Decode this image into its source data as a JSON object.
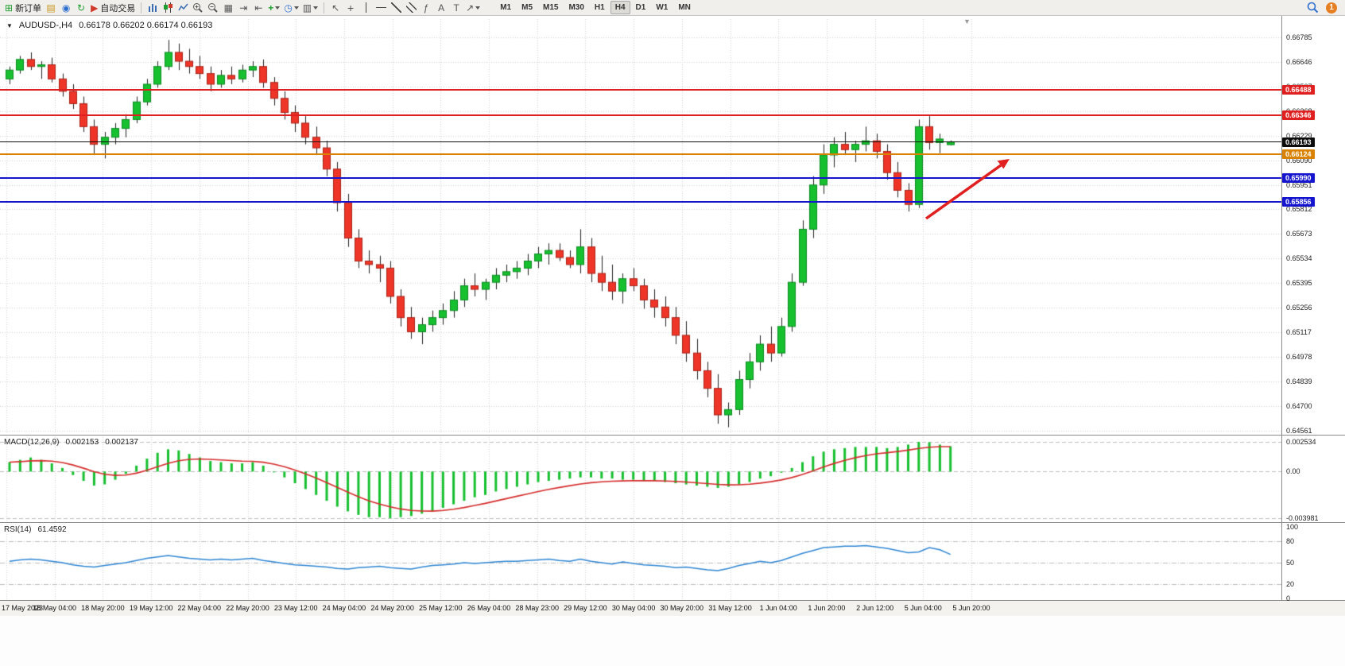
{
  "toolbar": {
    "new_order_label": "新订单",
    "autotrading_label": "自动交易",
    "timeframes": [
      "M1",
      "M5",
      "M15",
      "M30",
      "H1",
      "H4",
      "D1",
      "W1",
      "MN"
    ],
    "active_timeframe": "H4",
    "notification_count": "1"
  },
  "chart": {
    "symbol_period": "AUDUSD-,H4",
    "ohlc": "0.66178 0.66202 0.66174 0.66193",
    "open": "0.66178",
    "high": "0.66202",
    "low": "0.66174",
    "close": "0.66193"
  },
  "icons": {
    "caret_down": "▼",
    "new_order": "⊞",
    "folder": "▤",
    "profile": "◉",
    "refresh": "↻",
    "autotrade": "▶",
    "tile": "▦",
    "autoscroll": "⇥",
    "chart_shift": "⇤",
    "indicators": "+",
    "clock": "◷",
    "template": "▥",
    "cursor": "↖",
    "crosshair": "+",
    "fibonacci": "ƒ",
    "text": "A",
    "text_label": "T",
    "arrows": "↗",
    "shift_marker": "▼"
  },
  "chart_data": {
    "type": "candlestick",
    "symbol": "AUDUSD-",
    "timeframe": "H4",
    "title": "AUDUSD-,H4 0.66178 0.66202 0.66174 0.66193",
    "ylim": [
      0.64561,
      0.66785
    ],
    "price_axis": {
      "labels": [
        "0.66785",
        "0.66646",
        "0.66507",
        "0.66368",
        "0.66229",
        "0.66090",
        "0.65951",
        "0.65812",
        "0.65673",
        "0.65534",
        "0.65395",
        "0.65256",
        "0.65117",
        "0.64978",
        "0.64839",
        "0.64700",
        "0.64561"
      ]
    },
    "levels": [
      {
        "name": "resistance-1",
        "label": "0.66488",
        "price": 0.66488,
        "color": "#e02020"
      },
      {
        "name": "resistance-2",
        "label": "0.66346",
        "price": 0.66346,
        "color": "#e02020"
      },
      {
        "name": "current-price",
        "label": "0.66193",
        "price": 0.66193,
        "color": "#0c0c0c"
      },
      {
        "name": "mid-level",
        "label": "0.66124",
        "price": 0.66124,
        "color": "#d98200"
      },
      {
        "name": "support-1",
        "label": "0.65990",
        "price": 0.6599,
        "color": "#1515d0"
      },
      {
        "name": "support-2",
        "label": "0.65856",
        "price": 0.65856,
        "color": "#1515d0"
      }
    ],
    "time_labels": [
      "17 May 2023",
      "18 May 04:00",
      "18 May 20:00",
      "19 May 12:00",
      "22 May 04:00",
      "22 May 20:00",
      "23 May 12:00",
      "24 May 04:00",
      "24 May 20:00",
      "25 May 12:00",
      "26 May 04:00",
      "28 May 23:00",
      "29 May 12:00",
      "30 May 04:00",
      "30 May 20:00",
      "31 May 12:00",
      "1 Jun 04:00",
      "1 Jun 20:00",
      "2 Jun 12:00",
      "5 Jun 04:00",
      "5 Jun 20:00"
    ],
    "candles": [
      [
        0.6655,
        0.6662,
        0.6652,
        0.666
      ],
      [
        0.666,
        0.6668,
        0.6658,
        0.6666
      ],
      [
        0.6666,
        0.667,
        0.666,
        0.6662
      ],
      [
        0.6662,
        0.6665,
        0.6655,
        0.6663
      ],
      [
        0.6663,
        0.6667,
        0.6653,
        0.6655
      ],
      [
        0.6655,
        0.6658,
        0.6645,
        0.6648
      ],
      [
        0.6648,
        0.6652,
        0.6638,
        0.6641
      ],
      [
        0.6641,
        0.6645,
        0.6625,
        0.6628
      ],
      [
        0.6628,
        0.6632,
        0.6612,
        0.6618
      ],
      [
        0.6618,
        0.6625,
        0.661,
        0.6622
      ],
      [
        0.6622,
        0.663,
        0.6618,
        0.6627
      ],
      [
        0.6627,
        0.6635,
        0.6622,
        0.6632
      ],
      [
        0.6632,
        0.6645,
        0.663,
        0.6642
      ],
      [
        0.6642,
        0.6655,
        0.664,
        0.6652
      ],
      [
        0.6652,
        0.6665,
        0.665,
        0.6662
      ],
      [
        0.6662,
        0.6677,
        0.666,
        0.667
      ],
      [
        0.667,
        0.6675,
        0.666,
        0.6665
      ],
      [
        0.6665,
        0.6672,
        0.6658,
        0.6662
      ],
      [
        0.6662,
        0.6668,
        0.6655,
        0.6658
      ],
      [
        0.6658,
        0.6662,
        0.6648,
        0.6652
      ],
      [
        0.6652,
        0.666,
        0.665,
        0.6657
      ],
      [
        0.6657,
        0.6662,
        0.6652,
        0.6655
      ],
      [
        0.6655,
        0.6663,
        0.6653,
        0.666
      ],
      [
        0.666,
        0.6665,
        0.6656,
        0.6662
      ],
      [
        0.6662,
        0.6666,
        0.665,
        0.6653
      ],
      [
        0.6653,
        0.6656,
        0.664,
        0.6644
      ],
      [
        0.6644,
        0.6648,
        0.6632,
        0.6636
      ],
      [
        0.6636,
        0.664,
        0.6625,
        0.663
      ],
      [
        0.663,
        0.6634,
        0.6618,
        0.6622
      ],
      [
        0.6622,
        0.6628,
        0.6612,
        0.6616
      ],
      [
        0.6616,
        0.662,
        0.66,
        0.6604
      ],
      [
        0.6604,
        0.6608,
        0.658,
        0.6585
      ],
      [
        0.6585,
        0.659,
        0.656,
        0.6565
      ],
      [
        0.6565,
        0.657,
        0.6548,
        0.6552
      ],
      [
        0.6552,
        0.6558,
        0.6545,
        0.655
      ],
      [
        0.655,
        0.6555,
        0.654,
        0.6548
      ],
      [
        0.6548,
        0.6552,
        0.6528,
        0.6532
      ],
      [
        0.6532,
        0.6536,
        0.6515,
        0.652
      ],
      [
        0.652,
        0.6526,
        0.6508,
        0.6512
      ],
      [
        0.6512,
        0.652,
        0.6505,
        0.6516
      ],
      [
        0.6516,
        0.6524,
        0.6512,
        0.652
      ],
      [
        0.652,
        0.6528,
        0.6516,
        0.6524
      ],
      [
        0.6524,
        0.6535,
        0.652,
        0.653
      ],
      [
        0.653,
        0.6542,
        0.6526,
        0.6538
      ],
      [
        0.6538,
        0.6545,
        0.6532,
        0.6536
      ],
      [
        0.6536,
        0.6542,
        0.653,
        0.654
      ],
      [
        0.654,
        0.6548,
        0.6536,
        0.6544
      ],
      [
        0.6544,
        0.655,
        0.654,
        0.6546
      ],
      [
        0.6546,
        0.6552,
        0.6542,
        0.6548
      ],
      [
        0.6548,
        0.6556,
        0.6544,
        0.6552
      ],
      [
        0.6552,
        0.656,
        0.6548,
        0.6556
      ],
      [
        0.6556,
        0.6562,
        0.655,
        0.6558
      ],
      [
        0.6558,
        0.6562,
        0.6552,
        0.6554
      ],
      [
        0.6554,
        0.6558,
        0.6548,
        0.655
      ],
      [
        0.655,
        0.657,
        0.6545,
        0.656
      ],
      [
        0.656,
        0.6565,
        0.654,
        0.6545
      ],
      [
        0.6545,
        0.6555,
        0.6535,
        0.654
      ],
      [
        0.654,
        0.655,
        0.653,
        0.6535
      ],
      [
        0.6535,
        0.6545,
        0.6528,
        0.6542
      ],
      [
        0.6542,
        0.6548,
        0.6535,
        0.6538
      ],
      [
        0.6538,
        0.6542,
        0.6525,
        0.653
      ],
      [
        0.653,
        0.6536,
        0.652,
        0.6526
      ],
      [
        0.6526,
        0.6532,
        0.6515,
        0.652
      ],
      [
        0.652,
        0.6526,
        0.6505,
        0.651
      ],
      [
        0.651,
        0.6518,
        0.6495,
        0.65
      ],
      [
        0.65,
        0.6508,
        0.6485,
        0.649
      ],
      [
        0.649,
        0.6495,
        0.6475,
        0.648
      ],
      [
        0.648,
        0.6488,
        0.646,
        0.6465
      ],
      [
        0.6465,
        0.6472,
        0.6458,
        0.6468
      ],
      [
        0.6468,
        0.649,
        0.6465,
        0.6485
      ],
      [
        0.6485,
        0.65,
        0.648,
        0.6495
      ],
      [
        0.6495,
        0.651,
        0.649,
        0.6505
      ],
      [
        0.6505,
        0.6515,
        0.6495,
        0.65
      ],
      [
        0.65,
        0.652,
        0.6498,
        0.6515
      ],
      [
        0.6515,
        0.6545,
        0.6512,
        0.654
      ],
      [
        0.654,
        0.6575,
        0.6538,
        0.657
      ],
      [
        0.657,
        0.66,
        0.6565,
        0.6595
      ],
      [
        0.6595,
        0.6618,
        0.659,
        0.6612
      ],
      [
        0.6612,
        0.6622,
        0.6605,
        0.6618
      ],
      [
        0.6618,
        0.6625,
        0.6612,
        0.6615
      ],
      [
        0.6615,
        0.662,
        0.6608,
        0.6618
      ],
      [
        0.6618,
        0.6628,
        0.6614,
        0.662
      ],
      [
        0.662,
        0.6624,
        0.661,
        0.6614
      ],
      [
        0.6614,
        0.6618,
        0.6598,
        0.6602
      ],
      [
        0.6602,
        0.6608,
        0.6588,
        0.6592
      ],
      [
        0.6592,
        0.6596,
        0.658,
        0.6584
      ],
      [
        0.6584,
        0.6632,
        0.6582,
        0.6628
      ],
      [
        0.6628,
        0.6634,
        0.6615,
        0.6619
      ],
      [
        0.6619,
        0.6624,
        0.6613,
        0.6621
      ],
      [
        0.66178,
        0.66202,
        0.66174,
        0.66193
      ]
    ],
    "macd": {
      "name": "MACD(12,26,9)",
      "main_value": "0.002153",
      "signal_value": "0.002137",
      "scale_labels": [
        "0.002534",
        "0.00",
        "-0.003981"
      ],
      "values": [
        0.0008,
        0.001,
        0.0012,
        0.001,
        0.0007,
        0.0003,
        -0.0003,
        -0.0008,
        -0.0012,
        -0.0011,
        -0.0007,
        -0.0002,
        0.0005,
        0.0011,
        0.0016,
        0.0019,
        0.0018,
        0.0015,
        0.0012,
        0.0009,
        0.0008,
        0.0007,
        0.0007,
        0.0008,
        0.0005,
        0.0,
        -0.0005,
        -0.001,
        -0.0015,
        -0.002,
        -0.0025,
        -0.003,
        -0.0034,
        -0.0037,
        -0.0039,
        -0.0039,
        -0.003981,
        -0.0039,
        -0.0038,
        -0.0036,
        -0.0034,
        -0.0031,
        -0.0028,
        -0.0025,
        -0.0022,
        -0.002,
        -0.0017,
        -0.0015,
        -0.0013,
        -0.0011,
        -0.0009,
        -0.0008,
        -0.0007,
        -0.0006,
        -0.0005,
        -0.0005,
        -0.0006,
        -0.0006,
        -0.0007,
        -0.0007,
        -0.0008,
        -0.0008,
        -0.0009,
        -0.001,
        -0.0011,
        -0.0012,
        -0.0013,
        -0.0014,
        -0.0013,
        -0.0011,
        -0.0009,
        -0.0006,
        -0.0004,
        -0.0001,
        0.0003,
        0.0008,
        0.0013,
        0.0017,
        0.0019,
        0.002,
        0.0021,
        0.0021,
        0.0021,
        0.002,
        0.0021,
        0.0023,
        0.002534,
        0.0025,
        0.0023,
        0.002153
      ]
    },
    "rsi": {
      "name": "RSI(14)",
      "value": "61.4592",
      "levels": [
        80,
        50,
        20
      ],
      "scale_labels": [
        "100",
        "80",
        "50",
        "20",
        "0"
      ],
      "values": [
        52,
        54,
        55,
        54,
        52,
        50,
        47,
        45,
        44,
        46,
        48,
        50,
        53,
        56,
        58,
        60,
        58,
        56,
        55,
        54,
        55,
        54,
        55,
        56,
        53,
        51,
        49,
        47,
        46,
        45,
        44,
        42,
        41,
        43,
        44,
        45,
        43,
        42,
        41,
        44,
        46,
        47,
        48,
        50,
        49,
        50,
        51,
        52,
        52,
        53,
        54,
        55,
        53,
        52,
        55,
        52,
        50,
        48,
        51,
        49,
        47,
        46,
        45,
        43,
        44,
        42,
        40,
        39,
        42,
        46,
        49,
        52,
        50,
        53,
        58,
        63,
        67,
        71,
        72,
        73,
        73,
        74,
        72,
        70,
        67,
        64,
        65,
        71,
        68,
        61.4592
      ]
    },
    "annotations": [
      {
        "type": "arrow",
        "color": "#e02020",
        "direction": "up-right"
      }
    ]
  }
}
